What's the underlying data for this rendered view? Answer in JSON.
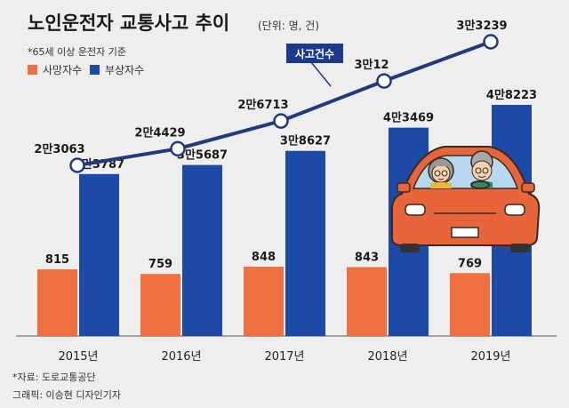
{
  "header": {
    "title": "노인운전자 교통사고 추이",
    "unit": "(단위: 명, 건)",
    "basis": "*65세 이상 운전자 기준"
  },
  "colors": {
    "fatalities": "#f07040",
    "injuries": "#1c4aa6",
    "line": "#223a7a",
    "callout": "#1c3a8c",
    "background": "#eeeeee"
  },
  "callout": {
    "label": "사고건수"
  },
  "chart_data": {
    "type": "bar+line",
    "categories": [
      "2015년",
      "2016년",
      "2017년",
      "2018년",
      "2019년"
    ],
    "series": [
      {
        "name": "사망자수",
        "kind": "bar",
        "values": [
          815,
          759,
          848,
          843,
          769
        ],
        "labels": [
          "815",
          "759",
          "848",
          "843",
          "769"
        ]
      },
      {
        "name": "부상자수",
        "kind": "bar",
        "values": [
          33787,
          35687,
          38627,
          43469,
          48223
        ],
        "labels": [
          "3만3787",
          "3만5687",
          "3만8627",
          "4만3469",
          "4만8223"
        ]
      },
      {
        "name": "사고건수",
        "kind": "line",
        "values": [
          23063,
          24429,
          26713,
          30012,
          33239
        ],
        "labels": [
          "2만3063",
          "2만4429",
          "2만6713",
          "3만12",
          "3만3239"
        ]
      }
    ],
    "legend_position": "top-left",
    "grid": false
  },
  "footer": {
    "source": "*자료: 도로교통공단",
    "credit": "그래픽: 이승현 디자인기자"
  },
  "illustration": {
    "name": "elderly-couple-driving-car"
  }
}
